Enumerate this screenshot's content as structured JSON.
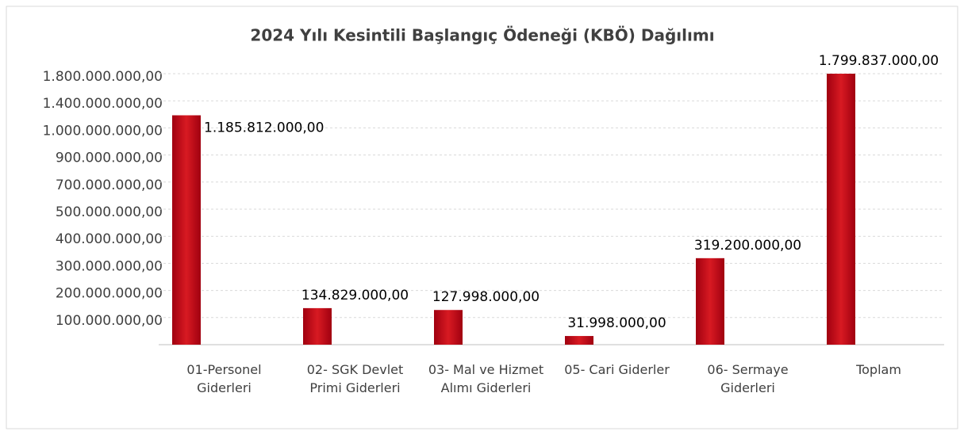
{
  "chart_data": {
    "type": "bar",
    "title": "2024 Yılı Kesintili Başlangıç Ödeneği (KBÖ) Dağılımı",
    "categories": [
      "01-Personel Giderleri",
      "02- SGK Devlet Primi Giderleri",
      "03- Mal ve Hizmet Alımı Giderleri",
      "05- Cari Giderler",
      "06- Sermaye Giderleri",
      "Toplam"
    ],
    "values": [
      1185812000,
      134829000,
      127998000,
      31998000,
      319200000,
      1799837000
    ],
    "value_labels": [
      "1.185.812.000,00",
      "134.829.000,00",
      "127.998.000,00",
      "31.998.000,00",
      "319.200.000,00",
      "1.799.837.000,00"
    ],
    "color": "#c4111b",
    "ylim": [
      0,
      1800000000
    ],
    "yticks": [
      {
        "value": 100000000,
        "label": "100.000.000,00"
      },
      {
        "value": 200000000,
        "label": "200.000.000,00"
      },
      {
        "value": 300000000,
        "label": "300.000.000,00"
      },
      {
        "value": 400000000,
        "label": "400.000.000,00"
      },
      {
        "value": 500000000,
        "label": "500.000.000,00"
      },
      {
        "value": 700000000,
        "label": "700.000.000,00"
      },
      {
        "value": 900000000,
        "label": "900.000.000,00"
      },
      {
        "value": 1000000000,
        "label": "1.000.000.000,00"
      },
      {
        "value": 1400000000,
        "label": "1.400.000.000,00"
      },
      {
        "value": 1800000000,
        "label": "1.800.000.000,00"
      }
    ],
    "grid": true
  }
}
